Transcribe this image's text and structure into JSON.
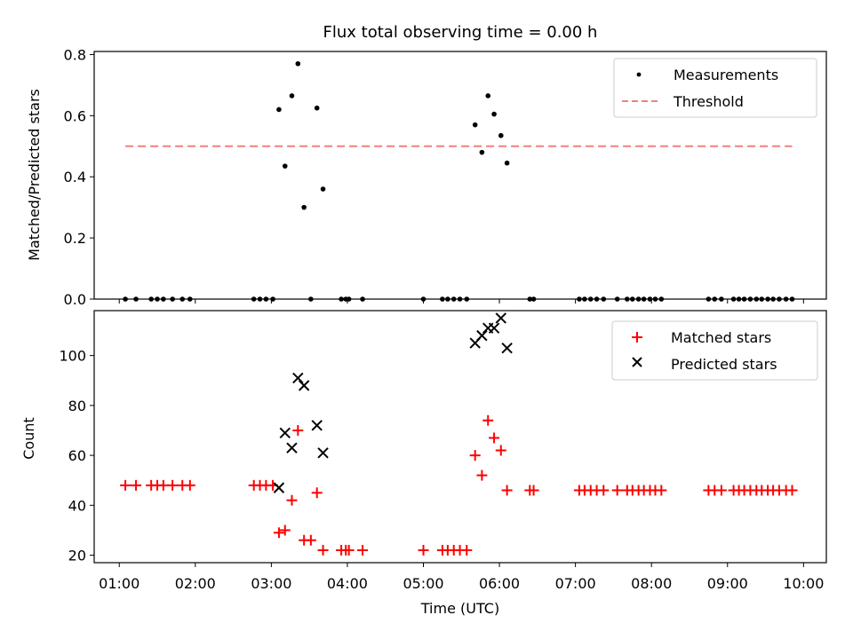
{
  "colors": {
    "measurement": "#000000",
    "threshold": "#f08080",
    "matched": "#ff0000",
    "predicted": "#000000"
  },
  "chart_data": [
    {
      "type": "scatter",
      "title": "Flux total observing time = 0.00 h",
      "xlabel": "",
      "ylabel": "Matched/Predicted stars",
      "xlim": [
        0.67,
        10.3
      ],
      "ylim": [
        0,
        0.81
      ],
      "yticks": [
        0,
        0.2,
        0.4,
        0.6,
        0.8
      ],
      "ytick_labels": [
        "0.0",
        "0.2",
        "0.4",
        "0.6",
        "0.8"
      ],
      "legend": "top-right",
      "series": [
        {
          "name": "Measurements",
          "kind": "dot",
          "x": [
            1.08,
            1.22,
            1.42,
            1.5,
            1.58,
            1.7,
            1.83,
            1.93,
            2.77,
            2.85,
            2.93,
            3.02,
            3.1,
            3.18,
            3.27,
            3.35,
            3.43,
            3.52,
            3.6,
            3.68,
            3.92,
            3.98,
            4.02,
            4.2,
            5.0,
            5.25,
            5.32,
            5.4,
            5.48,
            5.57,
            5.68,
            5.77,
            5.85,
            5.93,
            6.02,
            6.1,
            6.4,
            6.45,
            7.05,
            7.12,
            7.2,
            7.28,
            7.37,
            7.55,
            7.68,
            7.75,
            7.83,
            7.9,
            7.98,
            8.05,
            8.13,
            8.75,
            8.83,
            8.92,
            9.08,
            9.15,
            9.22,
            9.3,
            9.38,
            9.45,
            9.53,
            9.6,
            9.68,
            9.77,
            9.85
          ],
          "y": [
            0,
            0,
            0,
            0,
            0,
            0,
            0,
            0,
            0,
            0,
            0,
            0,
            0.62,
            0.435,
            0.665,
            0.77,
            0.3,
            0,
            0.625,
            0.36,
            0,
            0,
            0,
            0,
            0,
            0,
            0,
            0,
            0,
            0,
            0.57,
            0.48,
            0.665,
            0.605,
            0.535,
            0.445,
            0,
            0,
            0,
            0,
            0,
            0,
            0,
            0,
            0,
            0,
            0,
            0,
            0,
            0,
            0,
            0,
            0,
            0,
            0,
            0,
            0,
            0,
            0,
            0,
            0,
            0,
            0,
            0,
            0
          ]
        },
        {
          "name": "Threshold",
          "kind": "dashed-line",
          "x": [
            1.08,
            9.85
          ],
          "y": [
            0.5,
            0.5
          ]
        }
      ]
    },
    {
      "type": "scatter",
      "title": "",
      "xlabel": "Time (UTC)",
      "ylabel": "Count",
      "xlim": [
        0.67,
        10.3
      ],
      "ylim": [
        17,
        118
      ],
      "xticks": [
        1,
        2,
        3,
        4,
        5,
        6,
        7,
        8,
        9,
        10
      ],
      "xtick_labels": [
        "01:00",
        "02:00",
        "03:00",
        "04:00",
        "05:00",
        "06:00",
        "07:00",
        "08:00",
        "09:00",
        "10:00"
      ],
      "yticks": [
        20,
        40,
        60,
        80,
        100
      ],
      "ytick_labels": [
        "20",
        "40",
        "60",
        "80",
        "100"
      ],
      "legend": "top-right",
      "series": [
        {
          "name": "Matched stars",
          "kind": "plus",
          "x": [
            1.08,
            1.22,
            1.42,
            1.5,
            1.58,
            1.7,
            1.83,
            1.93,
            2.77,
            2.85,
            2.93,
            3.02,
            3.1,
            3.18,
            3.27,
            3.35,
            3.43,
            3.52,
            3.6,
            3.68,
            3.92,
            3.98,
            4.02,
            4.2,
            5.0,
            5.25,
            5.32,
            5.4,
            5.48,
            5.57,
            5.68,
            5.77,
            5.85,
            5.93,
            6.02,
            6.1,
            6.4,
            6.45,
            7.05,
            7.12,
            7.2,
            7.28,
            7.37,
            7.55,
            7.68,
            7.75,
            7.83,
            7.9,
            7.98,
            8.05,
            8.13,
            8.75,
            8.83,
            8.92,
            9.08,
            9.15,
            9.22,
            9.3,
            9.38,
            9.45,
            9.53,
            9.6,
            9.68,
            9.77,
            9.85
          ],
          "y": [
            48,
            48,
            48,
            48,
            48,
            48,
            48,
            48,
            48,
            48,
            48,
            48,
            29,
            30,
            42,
            70,
            26,
            26,
            45,
            22,
            22,
            22,
            22,
            22,
            22,
            22,
            22,
            22,
            22,
            22,
            60,
            52,
            74,
            67,
            62,
            46,
            46,
            46,
            46,
            46,
            46,
            46,
            46,
            46,
            46,
            46,
            46,
            46,
            46,
            46,
            46,
            46,
            46,
            46,
            46,
            46,
            46,
            46,
            46,
            46,
            46,
            46,
            46,
            46,
            46
          ]
        },
        {
          "name": "Predicted stars",
          "kind": "cross",
          "x": [
            3.1,
            3.18,
            3.27,
            3.35,
            3.43,
            3.6,
            3.68,
            5.68,
            5.77,
            5.85,
            5.93,
            6.02,
            6.1
          ],
          "y": [
            47,
            69,
            63,
            91,
            88,
            72,
            61,
            105,
            108,
            111,
            111,
            115,
            103
          ]
        }
      ]
    }
  ]
}
